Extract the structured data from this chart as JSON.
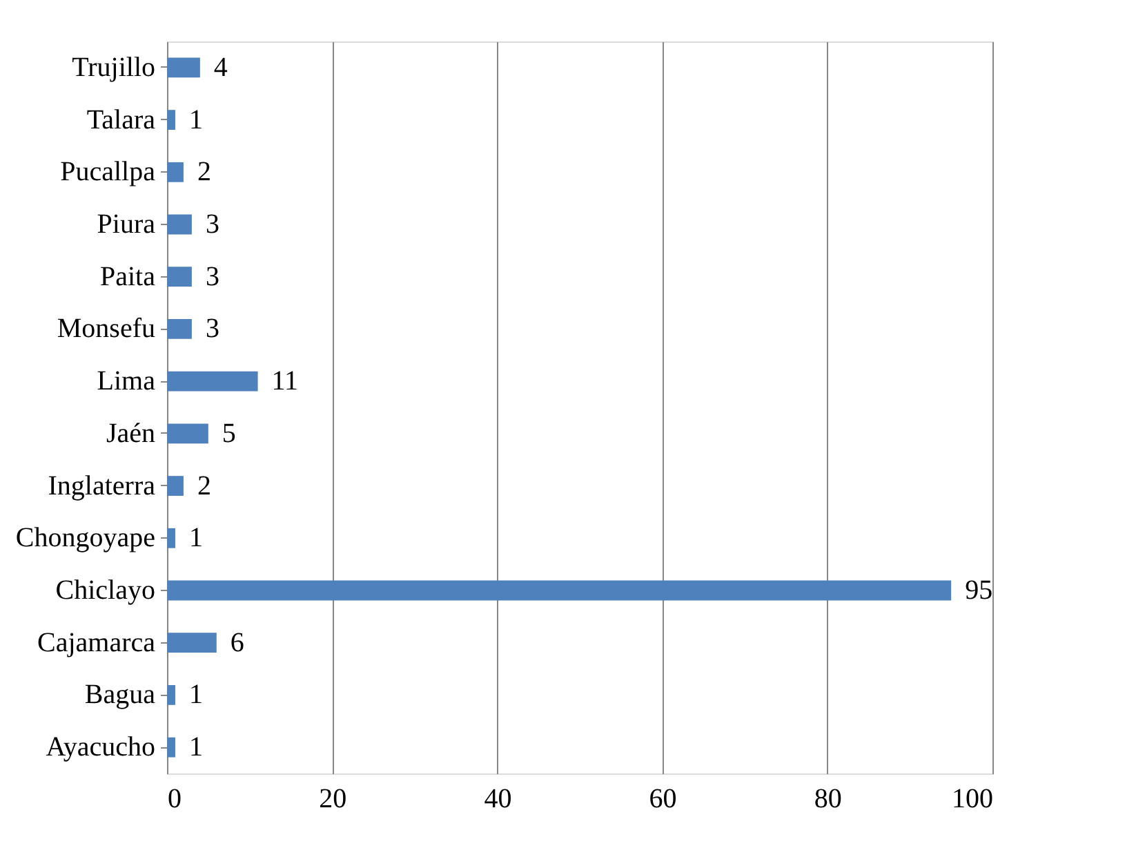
{
  "chart_data": {
    "type": "bar",
    "orientation": "horizontal",
    "categories": [
      "Trujillo",
      "Talara",
      "Pucallpa",
      "Piura",
      "Paita",
      "Monsefu",
      "Lima",
      "Jaén",
      "Inglaterra",
      "Chongoyape",
      "Chiclayo",
      "Cajamarca",
      "Bagua",
      "Ayacucho"
    ],
    "values": [
      4,
      1,
      2,
      3,
      3,
      3,
      11,
      5,
      2,
      1,
      95,
      6,
      1,
      1
    ],
    "color": "#4f81bd",
    "xlim": [
      0,
      100
    ],
    "xticks": [
      0,
      20,
      40,
      60,
      80,
      100
    ],
    "grid": "x",
    "data_labels": true
  }
}
